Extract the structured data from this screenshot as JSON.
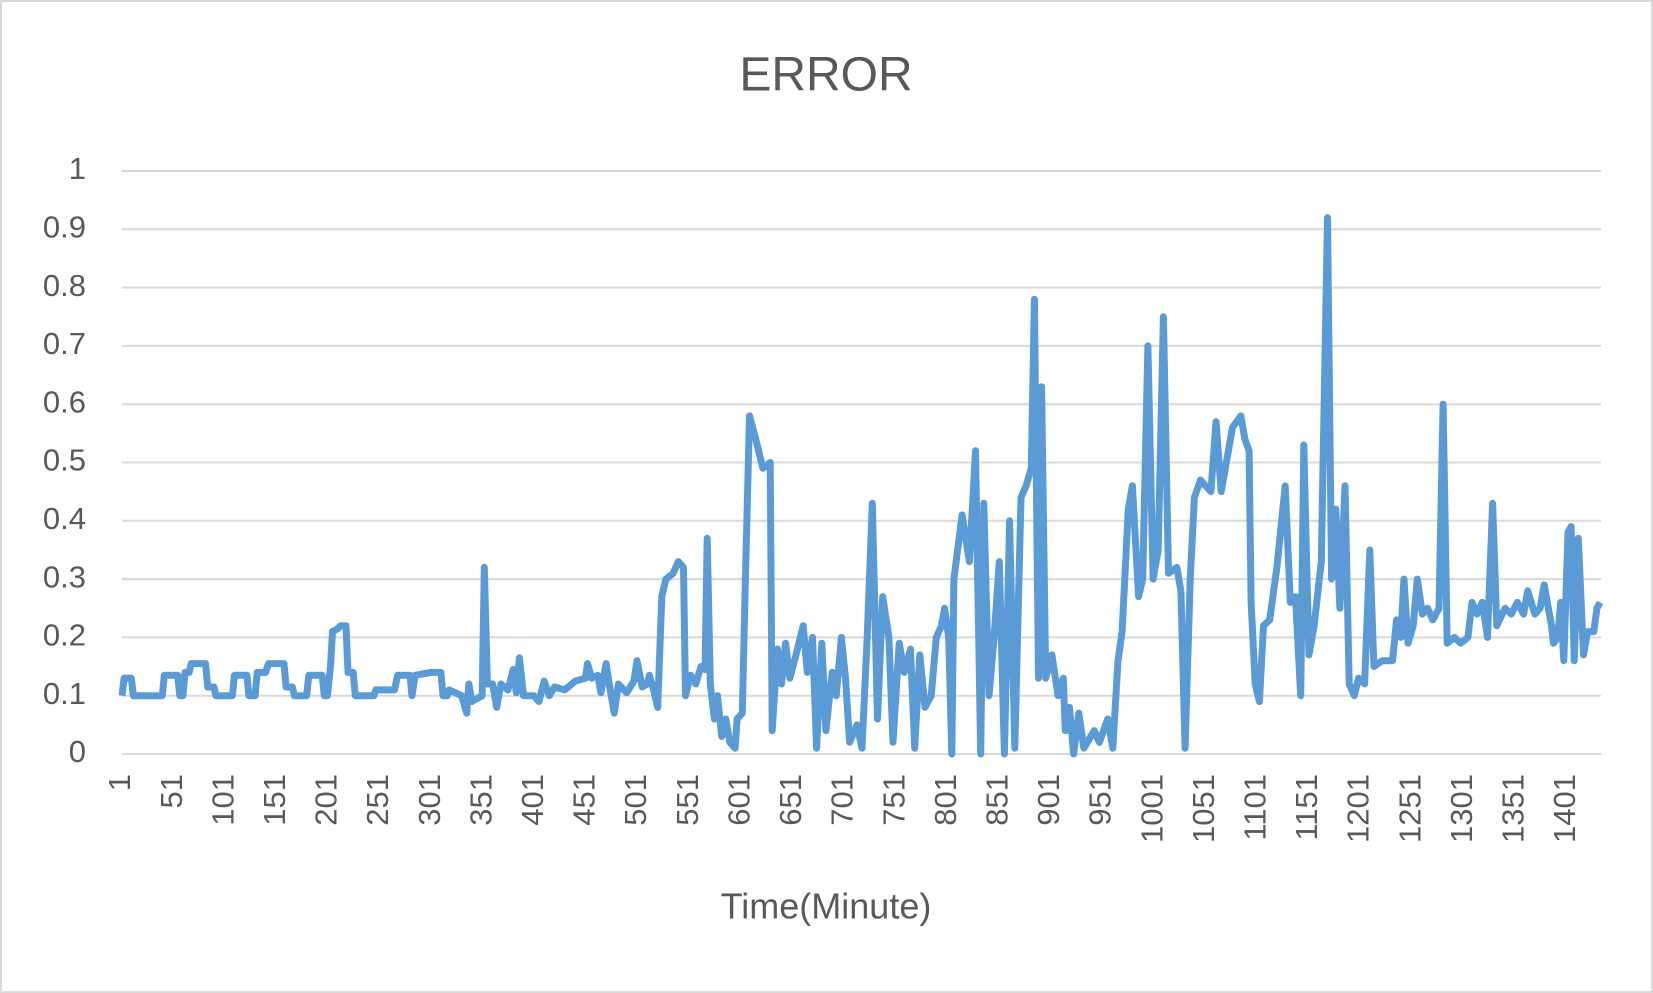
{
  "chart_data": {
    "type": "line",
    "title": "ERROR",
    "x_label": "Time(Minute)",
    "color": "#5b9bd5",
    "grid": true,
    "xlim": [
      1,
      1434
    ],
    "xticks": [
      1,
      51,
      101,
      151,
      201,
      251,
      301,
      351,
      401,
      451,
      501,
      551,
      601,
      651,
      701,
      751,
      801,
      851,
      901,
      951,
      1001,
      1051,
      1101,
      1151,
      1201,
      1251,
      1301,
      1351,
      1401
    ],
    "ylim": [
      0,
      1
    ],
    "yticks": [
      0,
      0.1,
      0.2,
      0.3,
      0.4,
      0.5,
      0.6,
      0.7,
      0.8,
      0.9,
      1
    ],
    "x": [
      1,
      3,
      10,
      12,
      40,
      42,
      55,
      57,
      60,
      62,
      66,
      68,
      82,
      84,
      90,
      92,
      108,
      110,
      122,
      124,
      130,
      132,
      140,
      143,
      158,
      160,
      166,
      168,
      180,
      182,
      195,
      197,
      200,
      203,
      205,
      210,
      213,
      218,
      220,
      225,
      227,
      245,
      247,
      265,
      268,
      280,
      282,
      285,
      300,
      310,
      312,
      316,
      318,
      330,
      335,
      337,
      340,
      350,
      352,
      355,
      360,
      364,
      368,
      375,
      380,
      383,
      386,
      390,
      400,
      405,
      410,
      415,
      420,
      430,
      440,
      450,
      452,
      456,
      462,
      465,
      470,
      474,
      478,
      482,
      490,
      497,
      500,
      505,
      510,
      512,
      516,
      520,
      524,
      528,
      535,
      540,
      545,
      547,
      552,
      557,
      562,
      566,
      568,
      571,
      575,
      578,
      582,
      586,
      590,
      595,
      597,
      602,
      605,
      609,
      615,
      622,
      629,
      631,
      636,
      640,
      644,
      648,
      654,
      661,
      665,
      670,
      674,
      679,
      683,
      689,
      693,
      698,
      702,
      706,
      713,
      718,
      723,
      728,
      733,
      738,
      744,
      748,
      754,
      759,
      765,
      769,
      774,
      779,
      785,
      790,
      795,
      798,
      802,
      805,
      807,
      815,
      822,
      828,
      833,
      836,
      841,
      846,
      851,
      856,
      861,
      866,
      872,
      877,
      882,
      885,
      889,
      892,
      896,
      902,
      908,
      913,
      915,
      919,
      923,
      928,
      933,
      943,
      948,
      956,
      961,
      966,
      970,
      976,
      980,
      986,
      990,
      995,
      1000,
      1005,
      1010,
      1015,
      1023,
      1027,
      1031,
      1036,
      1040,
      1046,
      1056,
      1061,
      1066,
      1071,
      1077,
      1085,
      1089,
      1093,
      1095,
      1099,
      1103,
      1107,
      1113,
      1120,
      1128,
      1133,
      1138,
      1143,
      1146,
      1151,
      1156,
      1163,
      1169,
      1173,
      1177,
      1181,
      1186,
      1190,
      1195,
      1199,
      1205,
      1210,
      1214,
      1222,
      1232,
      1236,
      1240,
      1243,
      1247,
      1252,
      1256,
      1261,
      1266,
      1271,
      1277,
      1281,
      1285,
      1292,
      1298,
      1305,
      1309,
      1314,
      1319,
      1324,
      1329,
      1333,
      1341,
      1347,
      1353,
      1359,
      1363,
      1370,
      1375,
      1379,
      1386,
      1388,
      1392,
      1395,
      1398,
      1402,
      1405,
      1408,
      1412,
      1417,
      1421,
      1427,
      1430,
      1433
    ],
    "values": [
      0.1,
      0.13,
      0.13,
      0.1,
      0.1,
      0.135,
      0.135,
      0.1,
      0.1,
      0.14,
      0.14,
      0.155,
      0.155,
      0.115,
      0.115,
      0.1,
      0.1,
      0.135,
      0.135,
      0.1,
      0.1,
      0.14,
      0.14,
      0.155,
      0.155,
      0.115,
      0.115,
      0.1,
      0.1,
      0.135,
      0.135,
      0.1,
      0.1,
      0.15,
      0.21,
      0.215,
      0.22,
      0.22,
      0.14,
      0.14,
      0.1,
      0.1,
      0.11,
      0.11,
      0.135,
      0.135,
      0.1,
      0.135,
      0.14,
      0.14,
      0.1,
      0.1,
      0.11,
      0.1,
      0.07,
      0.12,
      0.09,
      0.1,
      0.32,
      0.12,
      0.12,
      0.08,
      0.12,
      0.11,
      0.145,
      0.105,
      0.165,
      0.1,
      0.1,
      0.09,
      0.125,
      0.1,
      0.115,
      0.11,
      0.125,
      0.13,
      0.155,
      0.13,
      0.135,
      0.105,
      0.155,
      0.11,
      0.07,
      0.12,
      0.105,
      0.125,
      0.16,
      0.115,
      0.12,
      0.135,
      0.11,
      0.08,
      0.27,
      0.3,
      0.31,
      0.33,
      0.32,
      0.1,
      0.135,
      0.12,
      0.15,
      0.145,
      0.37,
      0.12,
      0.06,
      0.1,
      0.03,
      0.06,
      0.02,
      0.01,
      0.06,
      0.07,
      0.3,
      0.58,
      0.54,
      0.49,
      0.5,
      0.04,
      0.18,
      0.12,
      0.19,
      0.13,
      0.17,
      0.22,
      0.14,
      0.2,
      0.01,
      0.19,
      0.04,
      0.14,
      0.1,
      0.2,
      0.13,
      0.02,
      0.05,
      0.01,
      0.2,
      0.43,
      0.06,
      0.27,
      0.2,
      0.02,
      0.19,
      0.14,
      0.18,
      0.01,
      0.17,
      0.08,
      0.1,
      0.2,
      0.22,
      0.25,
      0.2,
      0,
      0.3,
      0.41,
      0.33,
      0.52,
      0,
      0.43,
      0.1,
      0.2,
      0.33,
      0,
      0.4,
      0.01,
      0.44,
      0.46,
      0.49,
      0.78,
      0.13,
      0.63,
      0.13,
      0.17,
      0.1,
      0.13,
      0.04,
      0.08,
      0,
      0.07,
      0.01,
      0.04,
      0.02,
      0.06,
      0.01,
      0.16,
      0.21,
      0.42,
      0.46,
      0.27,
      0.3,
      0.7,
      0.3,
      0.35,
      0.75,
      0.31,
      0.32,
      0.28,
      0.01,
      0.3,
      0.44,
      0.47,
      0.45,
      0.57,
      0.45,
      0.5,
      0.56,
      0.58,
      0.54,
      0.52,
      0.26,
      0.12,
      0.09,
      0.22,
      0.23,
      0.32,
      0.46,
      0.26,
      0.27,
      0.1,
      0.53,
      0.17,
      0.22,
      0.33,
      0.92,
      0.3,
      0.42,
      0.25,
      0.46,
      0.12,
      0.1,
      0.13,
      0.12,
      0.35,
      0.15,
      0.16,
      0.16,
      0.23,
      0.2,
      0.3,
      0.19,
      0.22,
      0.3,
      0.24,
      0.25,
      0.23,
      0.25,
      0.6,
      0.19,
      0.2,
      0.19,
      0.2,
      0.26,
      0.24,
      0.26,
      0.2,
      0.43,
      0.22,
      0.25,
      0.24,
      0.26,
      0.24,
      0.28,
      0.24,
      0.25,
      0.29,
      0.22,
      0.19,
      0.2,
      0.26,
      0.16,
      0.38,
      0.39,
      0.16,
      0.37,
      0.17,
      0.21,
      0.21,
      0.25,
      0.26
    ]
  }
}
